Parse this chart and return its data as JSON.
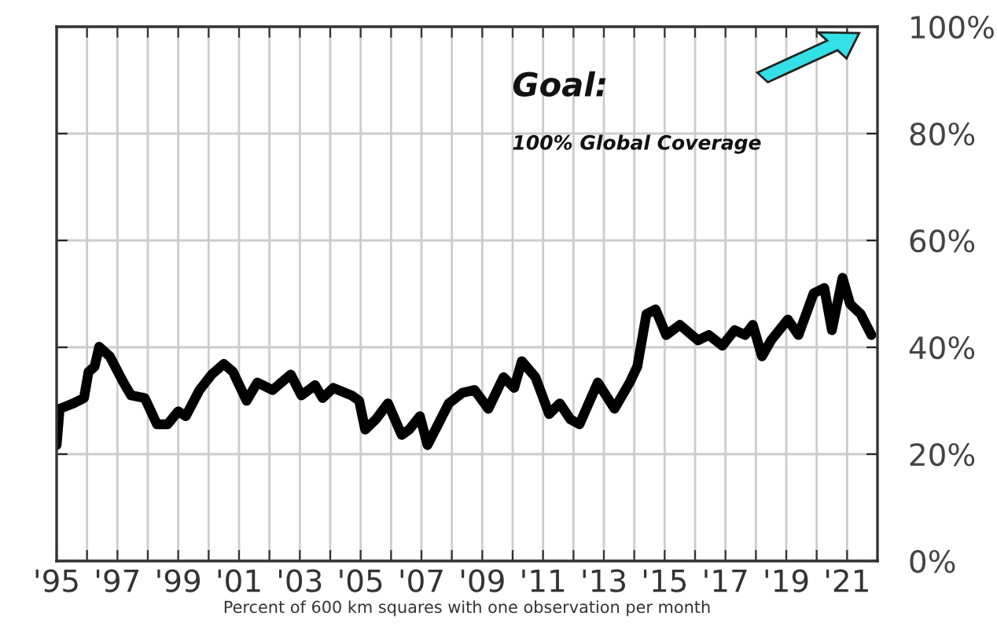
{
  "chart_data": {
    "type": "line",
    "xlabel": "Percent of 600 km squares with one observation per month",
    "annotations": [
      "Goal:",
      "100% Global Coverage"
    ],
    "x": [
      1995.0,
      1995.1,
      1995.55,
      1995.9,
      1996.05,
      1996.25,
      1996.4,
      1996.75,
      1997.2,
      1997.45,
      1997.9,
      1998.3,
      1998.65,
      1999.0,
      1999.25,
      1999.7,
      2000.1,
      2000.5,
      2000.8,
      2001.25,
      2001.6,
      2002.1,
      2002.7,
      2003.05,
      2003.5,
      2003.75,
      2004.1,
      2004.7,
      2004.95,
      2005.15,
      2005.5,
      2005.9,
      2006.35,
      2006.6,
      2006.95,
      2007.2,
      2007.55,
      2007.9,
      2008.35,
      2008.75,
      2009.2,
      2009.7,
      2010.05,
      2010.3,
      2010.75,
      2011.2,
      2011.55,
      2011.9,
      2012.2,
      2012.8,
      2013.35,
      2013.85,
      2014.1,
      2014.4,
      2014.7,
      2015.05,
      2015.5,
      2016.1,
      2016.45,
      2016.9,
      2017.3,
      2017.65,
      2017.9,
      2018.2,
      2018.5,
      2019.05,
      2019.4,
      2019.9,
      2020.25,
      2020.5,
      2020.85,
      2021.1,
      2021.45,
      2021.8
    ],
    "series": [
      {
        "color": "#000000",
        "values": [
          21.7,
          28.5,
          29.5,
          30.5,
          35.4,
          36.4,
          40.1,
          38.3,
          33.4,
          31.0,
          30.5,
          25.6,
          25.6,
          28.0,
          27.1,
          32.0,
          34.9,
          36.9,
          35.4,
          30.0,
          33.4,
          32.0,
          34.9,
          31.0,
          32.9,
          30.5,
          32.4,
          31.0,
          30.0,
          24.6,
          26.5,
          29.5,
          23.6,
          24.6,
          27.1,
          21.7,
          25.6,
          29.5,
          31.5,
          32.0,
          28.5,
          34.4,
          32.4,
          37.4,
          34.4,
          27.5,
          29.5,
          26.5,
          25.6,
          33.4,
          28.5,
          33.4,
          36.4,
          46.2,
          47.1,
          42.3,
          44.2,
          41.3,
          42.3,
          40.3,
          43.2,
          42.3,
          44.2,
          38.3,
          41.3,
          45.2,
          42.3,
          50.1,
          51.1,
          43.2,
          53.0,
          48.1,
          46.2,
          42.3
        ]
      }
    ],
    "xlim": [
      1995,
      2022
    ],
    "ylim": [
      0,
      100
    ],
    "xticks": [
      {
        "value": 1995,
        "label": "'95"
      },
      {
        "value": 1996,
        "label": null
      },
      {
        "value": 1997,
        "label": "'97"
      },
      {
        "value": 1998,
        "label": null
      },
      {
        "value": 1999,
        "label": "'99"
      },
      {
        "value": 2000,
        "label": null
      },
      {
        "value": 2001,
        "label": "'01"
      },
      {
        "value": 2002,
        "label": null
      },
      {
        "value": 2003,
        "label": "'03"
      },
      {
        "value": 2004,
        "label": null
      },
      {
        "value": 2005,
        "label": "'05"
      },
      {
        "value": 2006,
        "label": null
      },
      {
        "value": 2007,
        "label": "'07"
      },
      {
        "value": 2008,
        "label": null
      },
      {
        "value": 2009,
        "label": "'09"
      },
      {
        "value": 2010,
        "label": null
      },
      {
        "value": 2011,
        "label": "'11"
      },
      {
        "value": 2012,
        "label": null
      },
      {
        "value": 2013,
        "label": "'13"
      },
      {
        "value": 2014,
        "label": null
      },
      {
        "value": 2015,
        "label": "'15"
      },
      {
        "value": 2016,
        "label": null
      },
      {
        "value": 2017,
        "label": "'17"
      },
      {
        "value": 2018,
        "label": null
      },
      {
        "value": 2019,
        "label": "'19"
      },
      {
        "value": 2020,
        "label": null
      },
      {
        "value": 2021,
        "label": "'21"
      }
    ],
    "yticks": [
      {
        "value": 0,
        "label": "0%"
      },
      {
        "value": 20,
        "label": "20%"
      },
      {
        "value": 40,
        "label": "40%"
      },
      {
        "value": 60,
        "label": "60%"
      },
      {
        "value": 80,
        "label": "80%"
      },
      {
        "value": 100,
        "label": "100%"
      }
    ],
    "grid": true,
    "legend": false,
    "marker": "none",
    "line_style": "solid"
  }
}
